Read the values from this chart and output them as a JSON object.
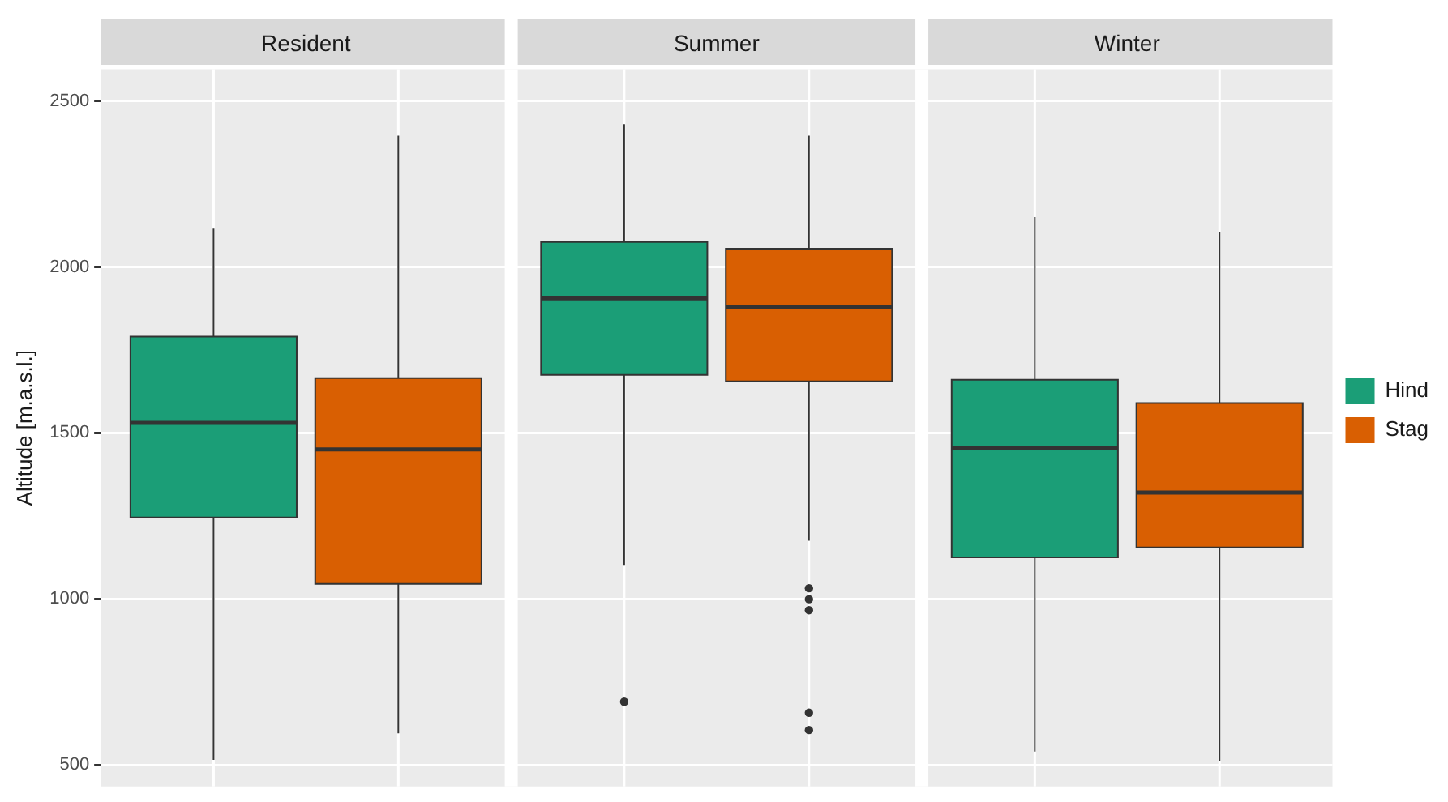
{
  "chart_data": {
    "type": "box",
    "ylabel": "Altitude [m.a.s.l.]",
    "categories": [
      "Resident",
      "Summer",
      "Winter"
    ],
    "ylim": [
      435,
      2595
    ],
    "yticks": [
      500,
      1000,
      1500,
      2000,
      2500
    ],
    "grid": true,
    "legend": "right",
    "series": [
      {
        "name": "Hind",
        "color": "#1b9e77",
        "boxes": [
          {
            "low": 515,
            "q1": 1245,
            "median": 1530,
            "q3": 1790,
            "high": 2115
          },
          {
            "low": 1100,
            "q1": 1675,
            "median": 1905,
            "q3": 2075,
            "high": 2430,
            "outliers": [
              690
            ]
          },
          {
            "low": 540,
            "q1": 1125,
            "median": 1455,
            "q3": 1660,
            "high": 2150
          }
        ]
      },
      {
        "name": "Stag",
        "color": "#d95f02",
        "boxes": [
          {
            "low": 595,
            "q1": 1045,
            "median": 1450,
            "q3": 1665,
            "high": 2395
          },
          {
            "low": 1175,
            "q1": 1655,
            "median": 1880,
            "q3": 2055,
            "high": 2395,
            "outliers": [
              1032,
              999,
              966,
              657,
              605
            ]
          },
          {
            "low": 510,
            "q1": 1155,
            "median": 1320,
            "q3": 1590,
            "high": 2105
          }
        ]
      }
    ]
  }
}
